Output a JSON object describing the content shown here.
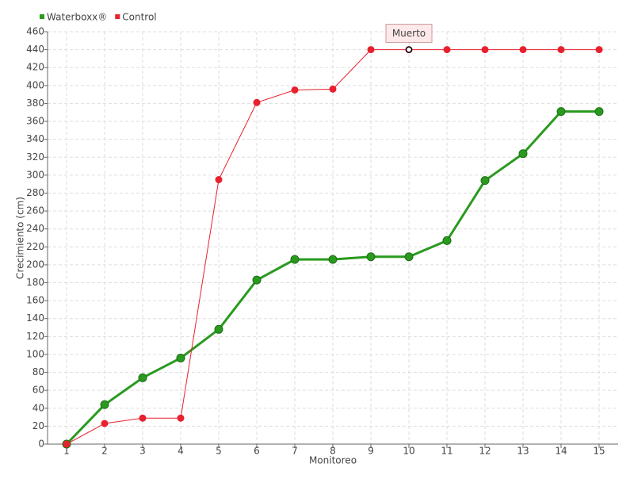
{
  "chart_data": {
    "type": "line",
    "x": [
      1,
      2,
      3,
      4,
      5,
      6,
      7,
      8,
      9,
      10,
      11,
      12,
      13,
      14,
      15
    ],
    "series": [
      {
        "name": "Waterboxx®",
        "color": "#2a9a1f",
        "values": [
          0,
          44,
          74,
          96,
          128,
          183,
          206,
          206,
          209,
          209,
          227,
          294,
          324,
          371,
          371
        ]
      },
      {
        "name": "Control",
        "color": "#e8212e",
        "values": [
          0,
          23,
          29,
          29,
          295,
          381,
          395,
          396,
          440,
          440,
          440,
          440,
          440,
          440,
          440
        ]
      }
    ],
    "xlabel": "Monitoreo",
    "ylabel": "Crecimiento (cm)",
    "annotation": "Muerto",
    "xlim": [
      0.5,
      15.5
    ],
    "xticks": [
      1,
      2,
      3,
      4,
      5,
      6,
      7,
      8,
      9,
      10,
      11,
      12,
      13,
      14,
      15
    ],
    "ylim": [
      0,
      460
    ],
    "yticks": [
      0,
      20,
      40,
      60,
      80,
      100,
      120,
      140,
      160,
      180,
      200,
      220,
      240,
      260,
      280,
      300,
      320,
      340,
      360,
      380,
      400,
      420,
      440,
      460
    ],
    "grid": true,
    "legend": "top-left"
  }
}
